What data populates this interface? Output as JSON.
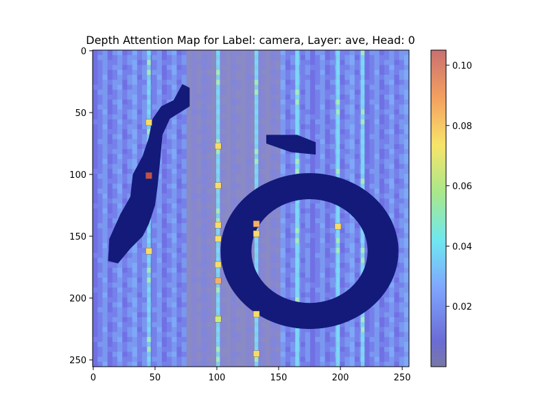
{
  "chart_data": {
    "type": "heatmap",
    "title": "Depth Attention Map for Label: camera, Layer: ave, Head: 0",
    "xlabel": "",
    "ylabel": "",
    "image_size": [
      256,
      256
    ],
    "xlim": [
      0,
      255
    ],
    "ylim": [
      255,
      0
    ],
    "x_ticks": [
      0,
      50,
      100,
      150,
      200,
      250
    ],
    "y_ticks": [
      0,
      50,
      100,
      150,
      200,
      250
    ],
    "colormap": "jet",
    "colorbar": {
      "range": [
        0.0,
        0.105
      ],
      "ticks": [
        0.02,
        0.04,
        0.06,
        0.08,
        0.1
      ],
      "tick_labels": [
        "0.02",
        "0.04",
        "0.06",
        "0.08",
        "0.10"
      ]
    },
    "bright_columns_x": [
      45,
      101,
      132,
      165,
      198,
      218
    ],
    "hotspots": [
      {
        "x": 45,
        "y": 101,
        "value": 0.1
      },
      {
        "x": 45,
        "y": 58,
        "value": 0.075
      },
      {
        "x": 45,
        "y": 162,
        "value": 0.075
      },
      {
        "x": 101,
        "y": 77,
        "value": 0.08
      },
      {
        "x": 101,
        "y": 109,
        "value": 0.075
      },
      {
        "x": 101,
        "y": 141,
        "value": 0.08
      },
      {
        "x": 101,
        "y": 152,
        "value": 0.075
      },
      {
        "x": 101,
        "y": 173,
        "value": 0.08
      },
      {
        "x": 101,
        "y": 186,
        "value": 0.085
      },
      {
        "x": 101,
        "y": 217,
        "value": 0.07
      },
      {
        "x": 132,
        "y": 140,
        "value": 0.085
      },
      {
        "x": 132,
        "y": 148,
        "value": 0.08
      },
      {
        "x": 132,
        "y": 213,
        "value": 0.075
      },
      {
        "x": 132,
        "y": 245,
        "value": 0.075
      },
      {
        "x": 198,
        "y": 142,
        "value": 0.075
      }
    ],
    "dark_regions": [
      {
        "shape": "left-blob",
        "points": [
          [
            72,
            27
          ],
          [
            78,
            30
          ],
          [
            78,
            45
          ],
          [
            70,
            50
          ],
          [
            62,
            55
          ],
          [
            56,
            68
          ],
          [
            54,
            90
          ],
          [
            52,
            110
          ],
          [
            50,
            125
          ],
          [
            45,
            140
          ],
          [
            40,
            150
          ],
          [
            30,
            160
          ],
          [
            20,
            172
          ],
          [
            12,
            170
          ],
          [
            13,
            152
          ],
          [
            22,
            132
          ],
          [
            30,
            118
          ],
          [
            32,
            100
          ],
          [
            40,
            85
          ],
          [
            45,
            70
          ],
          [
            48,
            55
          ],
          [
            55,
            45
          ],
          [
            65,
            40
          ]
        ]
      },
      {
        "shape": "ring",
        "center": [
          175,
          162
        ],
        "outer_rx": 72,
        "outer_ry": 63,
        "inner_rx": 47,
        "inner_ry": 42
      }
    ]
  }
}
